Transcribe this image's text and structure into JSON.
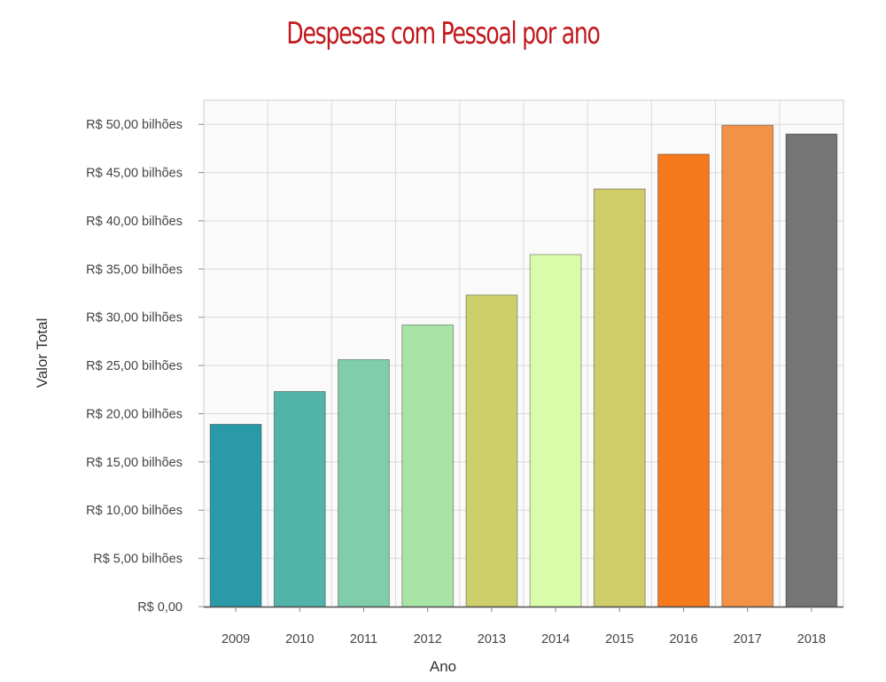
{
  "chart_data": {
    "type": "bar",
    "title": "Despesas com Pessoal por ano",
    "xlabel": "Ano",
    "ylabel": "Valor Total",
    "categories": [
      "2009",
      "2010",
      "2011",
      "2012",
      "2013",
      "2014",
      "2015",
      "2016",
      "2017",
      "2018"
    ],
    "values": [
      18.9,
      22.3,
      25.6,
      29.2,
      32.3,
      36.5,
      43.3,
      46.9,
      49.9,
      49.0
    ],
    "value_unit": "R$ bilhões",
    "ylim": [
      0,
      52.5
    ],
    "yticks": [
      0,
      5,
      10,
      15,
      20,
      25,
      30,
      35,
      40,
      45,
      50
    ],
    "ytick_labels": [
      "R$ 0,00",
      "R$ 5,00 bilhões",
      "R$ 10,00 bilhões",
      "R$ 15,00 bilhões",
      "R$ 20,00 bilhões",
      "R$ 25,00 bilhões",
      "R$ 30,00 bilhões",
      "R$ 35,00 bilhões",
      "R$ 40,00 bilhões",
      "R$ 45,00 bilhões",
      "R$ 50,00 bilhões"
    ],
    "colors": [
      "#2a9aa8",
      "#52b3ab",
      "#7fcdaa",
      "#a9e4a7",
      "#cdd06a",
      "#d9fcab",
      "#cfcc6a",
      "#f67a1c",
      "#f39146",
      "#757575"
    ],
    "grid": true,
    "legend": "none"
  }
}
